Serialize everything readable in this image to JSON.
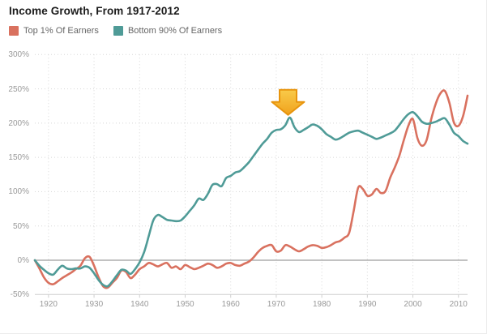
{
  "header": {
    "title": "Income Growth, From 1917-2012"
  },
  "legend": {
    "items": [
      {
        "label": "Top 1% Of Earners",
        "color": "#d9715f"
      },
      {
        "label": "Bottom 90% Of Earners",
        "color": "#4f9b97"
      }
    ]
  },
  "chart_data": {
    "type": "line",
    "title": "Income Growth, From 1917-2012",
    "xlabel": "",
    "ylabel": "",
    "x_range": [
      1917,
      2012
    ],
    "x_interval": 1,
    "xlim": [
      1917,
      2012
    ],
    "ylim": [
      -50,
      300
    ],
    "x_ticks": [
      1920,
      1930,
      1940,
      1950,
      1960,
      1970,
      1980,
      1990,
      2000,
      2010
    ],
    "y_ticks": [
      -50,
      0,
      50,
      100,
      150,
      200,
      250,
      300
    ],
    "y_tick_suffix": "%",
    "grid": "dotted",
    "zero_baseline": true,
    "legend_position": "top-left",
    "series": [
      {
        "name": "Top 1% Of Earners",
        "color": "#d9715f",
        "values": [
          0,
          -12,
          -25,
          -33,
          -35,
          -31,
          -26,
          -22,
          -18,
          -13,
          -8,
          3,
          5,
          -8,
          -25,
          -38,
          -40,
          -33,
          -26,
          -15,
          -17,
          -26,
          -21,
          -13,
          -9,
          -4,
          -6,
          -9,
          -6,
          -4,
          -11,
          -9,
          -13,
          -7,
          -10,
          -13,
          -11,
          -8,
          -5,
          -7,
          -11,
          -9,
          -5,
          -4,
          -7,
          -8,
          -5,
          -2,
          4,
          12,
          18,
          21,
          22,
          13,
          14,
          22,
          20,
          16,
          13,
          16,
          20,
          22,
          21,
          18,
          19,
          22,
          26,
          28,
          33,
          40,
          72,
          106,
          104,
          94,
          96,
          104,
          98,
          101,
          120,
          135,
          152,
          175,
          196,
          206,
          178,
          167,
          175,
          205,
          228,
          243,
          247,
          230,
          201,
          196,
          210,
          240
        ]
      },
      {
        "name": "Bottom 90% Of Earners",
        "color": "#4f9b97",
        "values": [
          0,
          -8,
          -14,
          -19,
          -21,
          -14,
          -8,
          -12,
          -13,
          -12,
          -12,
          -9,
          -11,
          -19,
          -29,
          -36,
          -38,
          -31,
          -22,
          -14,
          -15,
          -20,
          -13,
          -3,
          12,
          35,
          58,
          66,
          63,
          59,
          58,
          57,
          58,
          64,
          72,
          80,
          90,
          88,
          97,
          110,
          111,
          108,
          120,
          123,
          128,
          130,
          136,
          143,
          152,
          161,
          170,
          177,
          186,
          190,
          191,
          197,
          208,
          194,
          187,
          190,
          194,
          198,
          196,
          191,
          184,
          180,
          176,
          178,
          182,
          186,
          188,
          189,
          186,
          183,
          180,
          177,
          179,
          182,
          185,
          189,
          197,
          206,
          213,
          216,
          210,
          202,
          199,
          200,
          202,
          205,
          207,
          198,
          186,
          181,
          174,
          170
        ]
      }
    ],
    "annotation": {
      "shape": "down-arrow",
      "points_at_series": "Bottom 90% Of Earners",
      "x": 1972.6,
      "y_tip": 212,
      "fill_top": "#f9cb4a",
      "fill_bottom": "#f0a21d",
      "border_color": "#e8950e"
    }
  },
  "axis_colors": {
    "grid": "#d8d8d8",
    "zero_line": "#adadad",
    "axis_line": "#cfcfcf",
    "tick_text": "#999999"
  }
}
